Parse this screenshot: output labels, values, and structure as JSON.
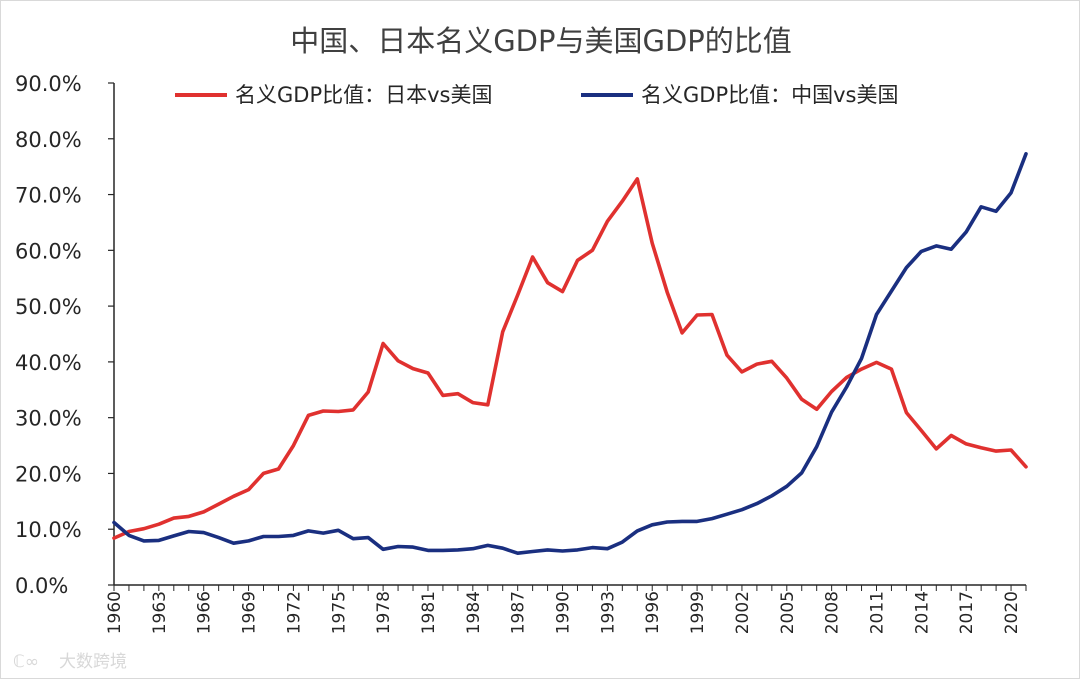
{
  "chart_data": {
    "type": "line",
    "title": "中国、日本名义GDP与美国GDP的比值",
    "xlabel": "",
    "ylabel": "",
    "ylim": [
      0,
      90
    ],
    "y_ticks": [
      "0.0%",
      "10.0%",
      "20.0%",
      "30.0%",
      "40.0%",
      "50.0%",
      "60.0%",
      "70.0%",
      "80.0%",
      "90.0%"
    ],
    "x_ticks": [
      "1960",
      "1963",
      "1966",
      "1969",
      "1972",
      "1975",
      "1978",
      "1981",
      "1984",
      "1987",
      "1990",
      "1993",
      "1996",
      "1999",
      "2002",
      "2005",
      "2008",
      "2011",
      "2014",
      "2017",
      "2020"
    ],
    "x": [
      1960,
      1961,
      1962,
      1963,
      1964,
      1965,
      1966,
      1967,
      1968,
      1969,
      1970,
      1971,
      1972,
      1973,
      1974,
      1975,
      1976,
      1977,
      1978,
      1979,
      1980,
      1981,
      1982,
      1983,
      1984,
      1985,
      1986,
      1987,
      1988,
      1989,
      1990,
      1991,
      1992,
      1993,
      1994,
      1995,
      1996,
      1997,
      1998,
      1999,
      2000,
      2001,
      2002,
      2003,
      2004,
      2005,
      2006,
      2007,
      2008,
      2009,
      2010,
      2011,
      2012,
      2013,
      2014,
      2015,
      2016,
      2017,
      2018,
      2019,
      2020,
      2021
    ],
    "legend_position": "top",
    "series": [
      {
        "name": "名义GDP比值：日本vs美国",
        "color": "#e0312f",
        "values": [
          8.4,
          9.6,
          10.1,
          10.9,
          12.0,
          12.3,
          13.1,
          14.5,
          15.9,
          17.1,
          20.0,
          20.8,
          25.0,
          30.4,
          31.2,
          31.1,
          31.4,
          34.6,
          43.3,
          40.2,
          38.8,
          38.0,
          34.0,
          34.3,
          32.7,
          32.3,
          45.4,
          52.0,
          58.8,
          54.2,
          52.6,
          58.2,
          60.0,
          65.2,
          68.8,
          72.8,
          61.3,
          52.5,
          45.2,
          48.4,
          48.5,
          41.2,
          38.2,
          39.6,
          40.1,
          37.1,
          33.3,
          31.5,
          34.7,
          37.2,
          38.7,
          39.9,
          38.7,
          30.9,
          27.7,
          24.4,
          26.8,
          25.3,
          24.6,
          24.0,
          24.2,
          21.2
        ]
      },
      {
        "name": "名义GDP比值：中国vs美国",
        "color": "#1a2f80",
        "values": [
          11.2,
          8.9,
          7.9,
          8.0,
          8.8,
          9.6,
          9.4,
          8.5,
          7.5,
          7.9,
          8.7,
          8.7,
          8.9,
          9.7,
          9.3,
          9.8,
          8.3,
          8.5,
          6.4,
          6.9,
          6.8,
          6.2,
          6.2,
          6.3,
          6.5,
          7.1,
          6.6,
          5.7,
          6.0,
          6.3,
          6.1,
          6.3,
          6.7,
          6.5,
          7.7,
          9.7,
          10.8,
          11.3,
          11.4,
          11.4,
          11.9,
          12.7,
          13.5,
          14.6,
          16.0,
          17.7,
          20.1,
          24.8,
          31.0,
          35.5,
          40.6,
          48.5,
          52.7,
          56.9,
          59.8,
          60.8,
          60.2,
          63.3,
          67.8,
          67.0,
          70.3,
          77.3
        ]
      }
    ],
    "watermark": "大数跨境"
  }
}
